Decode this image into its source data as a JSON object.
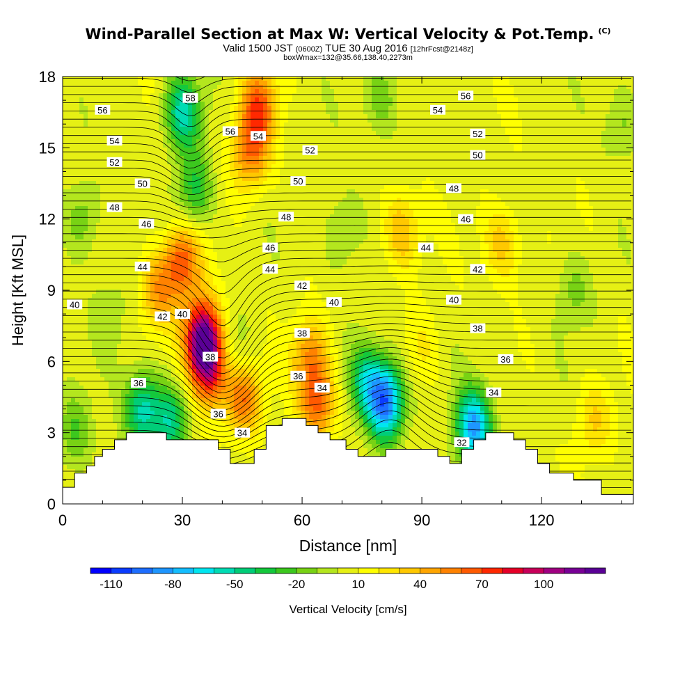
{
  "title": {
    "main": "Wind-Parallel Section at Max W: Vertical Velocity & Pot.Temp.",
    "main_tag": "(C)",
    "sub_valid": "Valid 1500 JST",
    "sub_utc": "(0600Z)",
    "sub_date": "TUE 30 Aug 2016",
    "sub_fcst": "[12hrFcst@2148z]",
    "box_max": "boxWmax=132@35.66,138.40,2273m"
  },
  "chart_data": {
    "type": "heatmap",
    "xlabel": "Distance [nm]",
    "ylabel": "Height [Kft MSL]",
    "xlim": [
      0,
      143
    ],
    "ylim": [
      0,
      18
    ],
    "x_ticks": [
      0,
      30,
      60,
      90,
      120
    ],
    "y_ticks": [
      0,
      3,
      6,
      9,
      12,
      15,
      18
    ],
    "colorbar": {
      "label": "Vertical Velocity [cm/s]",
      "ticks": [
        -110,
        -80,
        -50,
        -20,
        10,
        40,
        70,
        100
      ],
      "levels": [
        -110,
        -100,
        -90,
        -80,
        -70,
        -60,
        -50,
        -40,
        -30,
        -20,
        -10,
        0,
        10,
        20,
        30,
        40,
        50,
        60,
        70,
        80,
        90,
        100,
        110,
        120
      ],
      "colors": [
        "#0000ff",
        "#0a3cff",
        "#1e6eff",
        "#1e96ff",
        "#14beff",
        "#00e6f0",
        "#00dcb4",
        "#00cd78",
        "#14c83c",
        "#3cc81e",
        "#78d214",
        "#b4e61e",
        "#e6f014",
        "#ffff00",
        "#ffe600",
        "#ffc800",
        "#ffa500",
        "#ff8200",
        "#ff5a00",
        "#ff2800",
        "#e60028",
        "#c8005a",
        "#a00082",
        "#780096",
        "#5a0096"
      ]
    },
    "terrain": [
      [
        0,
        0.7
      ],
      [
        3,
        0.7
      ],
      [
        3,
        1.3
      ],
      [
        6,
        1.3
      ],
      [
        6,
        1.6
      ],
      [
        8,
        1.6
      ],
      [
        8,
        2.0
      ],
      [
        10,
        2.0
      ],
      [
        10,
        2.3
      ],
      [
        13,
        2.3
      ],
      [
        13,
        2.7
      ],
      [
        16,
        2.7
      ],
      [
        16,
        3.0
      ],
      [
        26,
        3.0
      ],
      [
        26,
        2.7
      ],
      [
        39,
        2.7
      ],
      [
        39,
        2.3
      ],
      [
        42,
        2.3
      ],
      [
        42,
        1.7
      ],
      [
        48,
        1.7
      ],
      [
        48,
        2.3
      ],
      [
        51,
        2.3
      ],
      [
        51,
        3.3
      ],
      [
        55,
        3.3
      ],
      [
        55,
        3.6
      ],
      [
        61,
        3.6
      ],
      [
        61,
        3.3
      ],
      [
        64,
        3.3
      ],
      [
        64,
        3.0
      ],
      [
        67,
        3.0
      ],
      [
        67,
        2.7
      ],
      [
        71,
        2.7
      ],
      [
        71,
        2.3
      ],
      [
        74,
        2.3
      ],
      [
        74,
        2.0
      ],
      [
        81,
        2.0
      ],
      [
        81,
        2.3
      ],
      [
        94,
        2.3
      ],
      [
        94,
        2.0
      ],
      [
        97,
        2.0
      ],
      [
        97,
        1.7
      ],
      [
        100,
        1.7
      ],
      [
        100,
        2.3
      ],
      [
        103,
        2.3
      ],
      [
        103,
        2.7
      ],
      [
        106,
        2.7
      ],
      [
        106,
        3.0
      ],
      [
        113,
        3.0
      ],
      [
        113,
        2.7
      ],
      [
        116,
        2.7
      ],
      [
        116,
        2.3
      ],
      [
        119,
        2.3
      ],
      [
        119,
        1.7
      ],
      [
        122,
        1.7
      ],
      [
        122,
        1.3
      ],
      [
        128,
        1.3
      ],
      [
        128,
        1.0
      ],
      [
        135,
        1.0
      ],
      [
        135,
        0.4
      ],
      [
        143,
        0.4
      ]
    ],
    "w_features": [
      {
        "x": 35,
        "y": 7.0,
        "w": 110
      },
      {
        "x": 37,
        "y": 5.6,
        "w": 70
      },
      {
        "x": 30,
        "y": 10.2,
        "w": 60
      },
      {
        "x": 24,
        "y": 9.0,
        "w": 40
      },
      {
        "x": 45,
        "y": 4.5,
        "w": 55
      },
      {
        "x": 47,
        "y": 14.8,
        "w": 50
      },
      {
        "x": 49,
        "y": 16.8,
        "w": 55
      },
      {
        "x": 62,
        "y": 6.2,
        "w": 45
      },
      {
        "x": 64,
        "y": 4.2,
        "w": 55
      },
      {
        "x": 85,
        "y": 11.5,
        "w": 35
      },
      {
        "x": 110,
        "y": 11.0,
        "w": 30
      },
      {
        "x": 90,
        "y": 6.5,
        "w": 15
      },
      {
        "x": 133,
        "y": 3.5,
        "w": 25
      },
      {
        "x": 30,
        "y": 16.5,
        "w": -60
      },
      {
        "x": 33,
        "y": 13.2,
        "w": -40
      },
      {
        "x": 20,
        "y": 4.0,
        "w": -60
      },
      {
        "x": 27,
        "y": 3.4,
        "w": -50
      },
      {
        "x": 81,
        "y": 4.3,
        "w": -100
      },
      {
        "x": 76,
        "y": 5.2,
        "w": -50
      },
      {
        "x": 103,
        "y": 3.2,
        "w": -90
      },
      {
        "x": 43,
        "y": 6.2,
        "w": -20
      },
      {
        "x": 70,
        "y": 11.5,
        "w": -20
      },
      {
        "x": 80,
        "y": 17.2,
        "w": -25
      },
      {
        "x": 5,
        "y": 12.0,
        "w": -25
      },
      {
        "x": 3,
        "y": 3.0,
        "w": -25
      },
      {
        "x": 128,
        "y": 9.0,
        "w": -20
      },
      {
        "x": 140,
        "y": 16.0,
        "w": -20
      },
      {
        "x": 12,
        "y": 8.0,
        "w": -15
      }
    ],
    "theta_labels": [
      {
        "x": 10,
        "y": 16.6,
        "text": "56"
      },
      {
        "x": 13,
        "y": 15.3,
        "text": "54"
      },
      {
        "x": 13,
        "y": 14.4,
        "text": "52"
      },
      {
        "x": 20,
        "y": 13.5,
        "text": "50"
      },
      {
        "x": 13,
        "y": 12.5,
        "text": "48"
      },
      {
        "x": 21,
        "y": 11.8,
        "text": "46"
      },
      {
        "x": 20,
        "y": 10.0,
        "text": "44"
      },
      {
        "x": 3,
        "y": 8.4,
        "text": "40"
      },
      {
        "x": 25,
        "y": 7.9,
        "text": "42"
      },
      {
        "x": 30,
        "y": 8.0,
        "text": "40"
      },
      {
        "x": 37,
        "y": 6.2,
        "text": "38"
      },
      {
        "x": 19,
        "y": 5.1,
        "text": "36"
      },
      {
        "x": 39,
        "y": 3.8,
        "text": "36"
      },
      {
        "x": 45,
        "y": 3.0,
        "text": "34"
      },
      {
        "x": 32,
        "y": 17.1,
        "text": "58"
      },
      {
        "x": 42,
        "y": 15.7,
        "text": "56"
      },
      {
        "x": 49,
        "y": 15.5,
        "text": "54"
      },
      {
        "x": 62,
        "y": 14.9,
        "text": "52"
      },
      {
        "x": 59,
        "y": 13.6,
        "text": "50"
      },
      {
        "x": 56,
        "y": 12.1,
        "text": "48"
      },
      {
        "x": 52,
        "y": 10.8,
        "text": "46"
      },
      {
        "x": 52,
        "y": 9.9,
        "text": "44"
      },
      {
        "x": 60,
        "y": 9.2,
        "text": "42"
      },
      {
        "x": 68,
        "y": 8.5,
        "text": "40"
      },
      {
        "x": 60,
        "y": 7.2,
        "text": "38"
      },
      {
        "x": 59,
        "y": 5.4,
        "text": "36"
      },
      {
        "x": 65,
        "y": 4.9,
        "text": "34"
      },
      {
        "x": 101,
        "y": 17.2,
        "text": "56"
      },
      {
        "x": 94,
        "y": 16.6,
        "text": "54"
      },
      {
        "x": 104,
        "y": 15.6,
        "text": "52"
      },
      {
        "x": 104,
        "y": 14.7,
        "text": "50"
      },
      {
        "x": 98,
        "y": 13.3,
        "text": "48"
      },
      {
        "x": 101,
        "y": 12.0,
        "text": "46"
      },
      {
        "x": 91,
        "y": 10.8,
        "text": "44"
      },
      {
        "x": 104,
        "y": 9.9,
        "text": "42"
      },
      {
        "x": 98,
        "y": 8.6,
        "text": "40"
      },
      {
        "x": 104,
        "y": 7.4,
        "text": "38"
      },
      {
        "x": 111,
        "y": 6.1,
        "text": "36"
      },
      {
        "x": 108,
        "y": 4.7,
        "text": "34"
      },
      {
        "x": 100,
        "y": 2.6,
        "text": "32"
      }
    ]
  }
}
